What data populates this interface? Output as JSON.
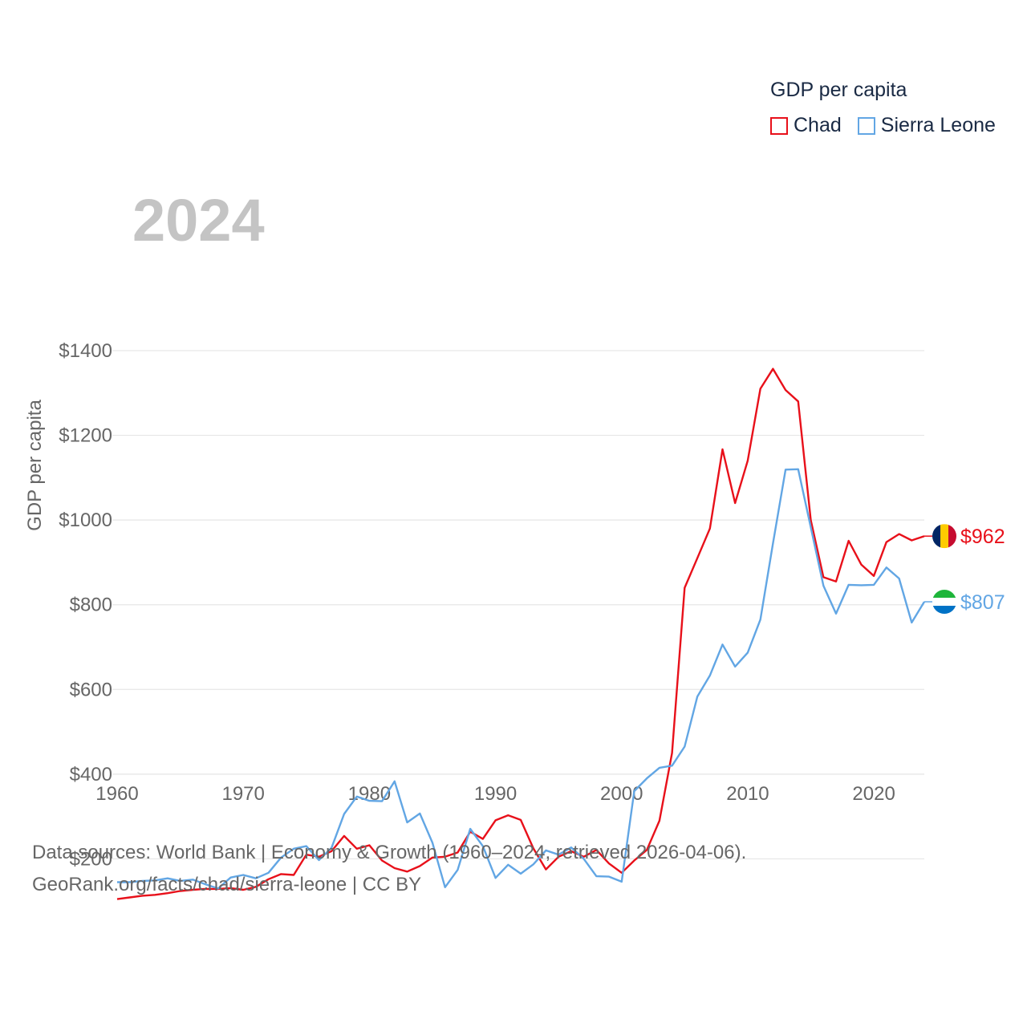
{
  "legend": {
    "title": "GDP per capita"
  },
  "footer": {
    "line1": "Data sources: World Bank | Economy & Growth (1960–2024, retrieved 2026-04-06).",
    "line2": "GeoRank.org/facts/chad/sierra-leone | CC BY"
  },
  "colors": {
    "chad": "#e8101a",
    "sierra_leone": "#62a6e4",
    "grid": "#e6e6e6",
    "axis_text": "#666666",
    "watermark": "#c4c4c4"
  },
  "chart_data": {
    "type": "line",
    "title": "GDP per capita",
    "xlabel": "",
    "ylabel": "GDP per capita",
    "year_label": "2024",
    "xlim": [
      1960,
      2024
    ],
    "ylim": [
      0,
      1400
    ],
    "yticks": [
      200,
      400,
      600,
      800,
      1000,
      1200,
      1400
    ],
    "ytick_labels": [
      "$200",
      "$400",
      "$600",
      "$800",
      "$1000",
      "$1200",
      "$1400"
    ],
    "xticks": [
      1960,
      1970,
      1980,
      1990,
      2000,
      2010,
      2020
    ],
    "xtick_labels": [
      "1960",
      "1970",
      "1980",
      "1990",
      "2000",
      "2010",
      "2020"
    ],
    "grid": true,
    "legend_position": "top-right",
    "x": [
      1960,
      1961,
      1962,
      1963,
      1964,
      1965,
      1966,
      1967,
      1968,
      1969,
      1970,
      1971,
      1972,
      1973,
      1974,
      1975,
      1976,
      1977,
      1978,
      1979,
      1980,
      1981,
      1982,
      1983,
      1984,
      1985,
      1986,
      1987,
      1988,
      1989,
      1990,
      1991,
      1992,
      1993,
      1994,
      1995,
      1996,
      1997,
      1998,
      1999,
      2000,
      2001,
      2002,
      2003,
      2004,
      2005,
      2006,
      2007,
      2008,
      2009,
      2010,
      2011,
      2012,
      2013,
      2014,
      2015,
      2016,
      2017,
      2018,
      2019,
      2020,
      2021,
      2022,
      2023,
      2024
    ],
    "series": [
      {
        "name": "Chad",
        "key": "chad",
        "end_label": "$962",
        "values": [
          105,
          109,
          113,
          115,
          119,
          124,
          127,
          129,
          129,
          131,
          127,
          134,
          152,
          164,
          162,
          210,
          205,
          218,
          254,
          224,
          232,
          196,
          178,
          170,
          183,
          203,
          205,
          215,
          264,
          247,
          291,
          303,
          292,
          225,
          175,
          205,
          218,
          205,
          221,
          189,
          167,
          196,
          221,
          290,
          450,
          840,
          910,
          980,
          1167,
          1040,
          1140,
          1310,
          1357,
          1307,
          1280,
          1000,
          865,
          855,
          951,
          895,
          868,
          948,
          967,
          952,
          962
        ]
      },
      {
        "name": "Sierra Leone",
        "key": "sierra_leone",
        "end_label": "$807",
        "values": [
          145,
          145,
          148,
          149,
          154,
          148,
          151,
          140,
          130,
          156,
          162,
          154,
          167,
          203,
          224,
          230,
          197,
          226,
          306,
          347,
          337,
          336,
          383,
          286,
          307,
          238,
          133,
          174,
          271,
          230,
          155,
          186,
          165,
          187,
          220,
          210,
          227,
          200,
          159,
          158,
          146,
          360,
          390,
          415,
          420,
          465,
          583,
          633,
          706,
          654,
          687,
          765,
          945,
          1119,
          1120,
          983,
          845,
          779,
          847,
          846,
          847,
          888,
          862,
          758,
          807
        ]
      }
    ]
  }
}
